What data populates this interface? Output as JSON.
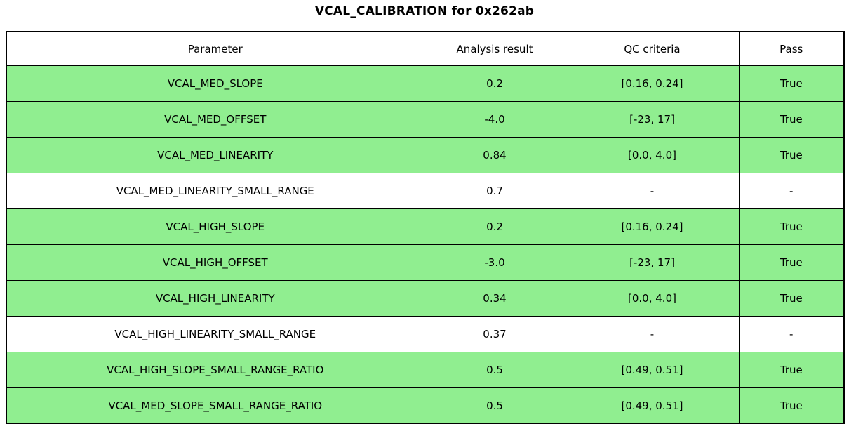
{
  "title": "VCAL_CALIBRATION for 0x262ab",
  "colors": {
    "pass_green": "#90ee90",
    "border": "#000000",
    "background": "#ffffff"
  },
  "table": {
    "headers": [
      "Parameter",
      "Analysis result",
      "QC criteria",
      "Pass"
    ],
    "rows": [
      {
        "parameter": "VCAL_MED_SLOPE",
        "result": "0.2",
        "criteria": "[0.16, 0.24]",
        "pass": "True",
        "highlight": true
      },
      {
        "parameter": "VCAL_MED_OFFSET",
        "result": "-4.0",
        "criteria": "[-23, 17]",
        "pass": "True",
        "highlight": true
      },
      {
        "parameter": "VCAL_MED_LINEARITY",
        "result": "0.84",
        "criteria": "[0.0, 4.0]",
        "pass": "True",
        "highlight": true
      },
      {
        "parameter": "VCAL_MED_LINEARITY_SMALL_RANGE",
        "result": "0.7",
        "criteria": "-",
        "pass": "-",
        "highlight": false
      },
      {
        "parameter": "VCAL_HIGH_SLOPE",
        "result": "0.2",
        "criteria": "[0.16, 0.24]",
        "pass": "True",
        "highlight": true
      },
      {
        "parameter": "VCAL_HIGH_OFFSET",
        "result": "-3.0",
        "criteria": "[-23, 17]",
        "pass": "True",
        "highlight": true
      },
      {
        "parameter": "VCAL_HIGH_LINEARITY",
        "result": "0.34",
        "criteria": "[0.0, 4.0]",
        "pass": "True",
        "highlight": true
      },
      {
        "parameter": "VCAL_HIGH_LINEARITY_SMALL_RANGE",
        "result": "0.37",
        "criteria": "-",
        "pass": "-",
        "highlight": false
      },
      {
        "parameter": "VCAL_HIGH_SLOPE_SMALL_RANGE_RATIO",
        "result": "0.5",
        "criteria": "[0.49, 0.51]",
        "pass": "True",
        "highlight": true
      },
      {
        "parameter": "VCAL_MED_SLOPE_SMALL_RANGE_RATIO",
        "result": "0.5",
        "criteria": "[0.49, 0.51]",
        "pass": "True",
        "highlight": true
      }
    ]
  },
  "chart_data": {
    "type": "table",
    "title": "VCAL_CALIBRATION for 0x262ab",
    "columns": [
      "Parameter",
      "Analysis result",
      "QC criteria",
      "Pass"
    ],
    "rows": [
      [
        "VCAL_MED_SLOPE",
        0.2,
        "[0.16, 0.24]",
        "True"
      ],
      [
        "VCAL_MED_OFFSET",
        -4.0,
        "[-23, 17]",
        "True"
      ],
      [
        "VCAL_MED_LINEARITY",
        0.84,
        "[0.0, 4.0]",
        "True"
      ],
      [
        "VCAL_MED_LINEARITY_SMALL_RANGE",
        0.7,
        "-",
        "-"
      ],
      [
        "VCAL_HIGH_SLOPE",
        0.2,
        "[0.16, 0.24]",
        "True"
      ],
      [
        "VCAL_HIGH_OFFSET",
        -3.0,
        "[-23, 17]",
        "True"
      ],
      [
        "VCAL_HIGH_LINEARITY",
        0.34,
        "[0.0, 4.0]",
        "True"
      ],
      [
        "VCAL_HIGH_LINEARITY_SMALL_RANGE",
        0.37,
        "-",
        "-"
      ],
      [
        "VCAL_HIGH_SLOPE_SMALL_RANGE_RATIO",
        0.5,
        "[0.49, 0.51]",
        "True"
      ],
      [
        "VCAL_MED_SLOPE_SMALL_RANGE_RATIO",
        0.5,
        "[0.49, 0.51]",
        "True"
      ]
    ],
    "layout_hints": {
      "highlight_color": "#90ee90",
      "highlighted_rows": [
        0,
        1,
        2,
        4,
        5,
        6,
        8,
        9
      ],
      "grid": true,
      "legend": "none"
    }
  }
}
